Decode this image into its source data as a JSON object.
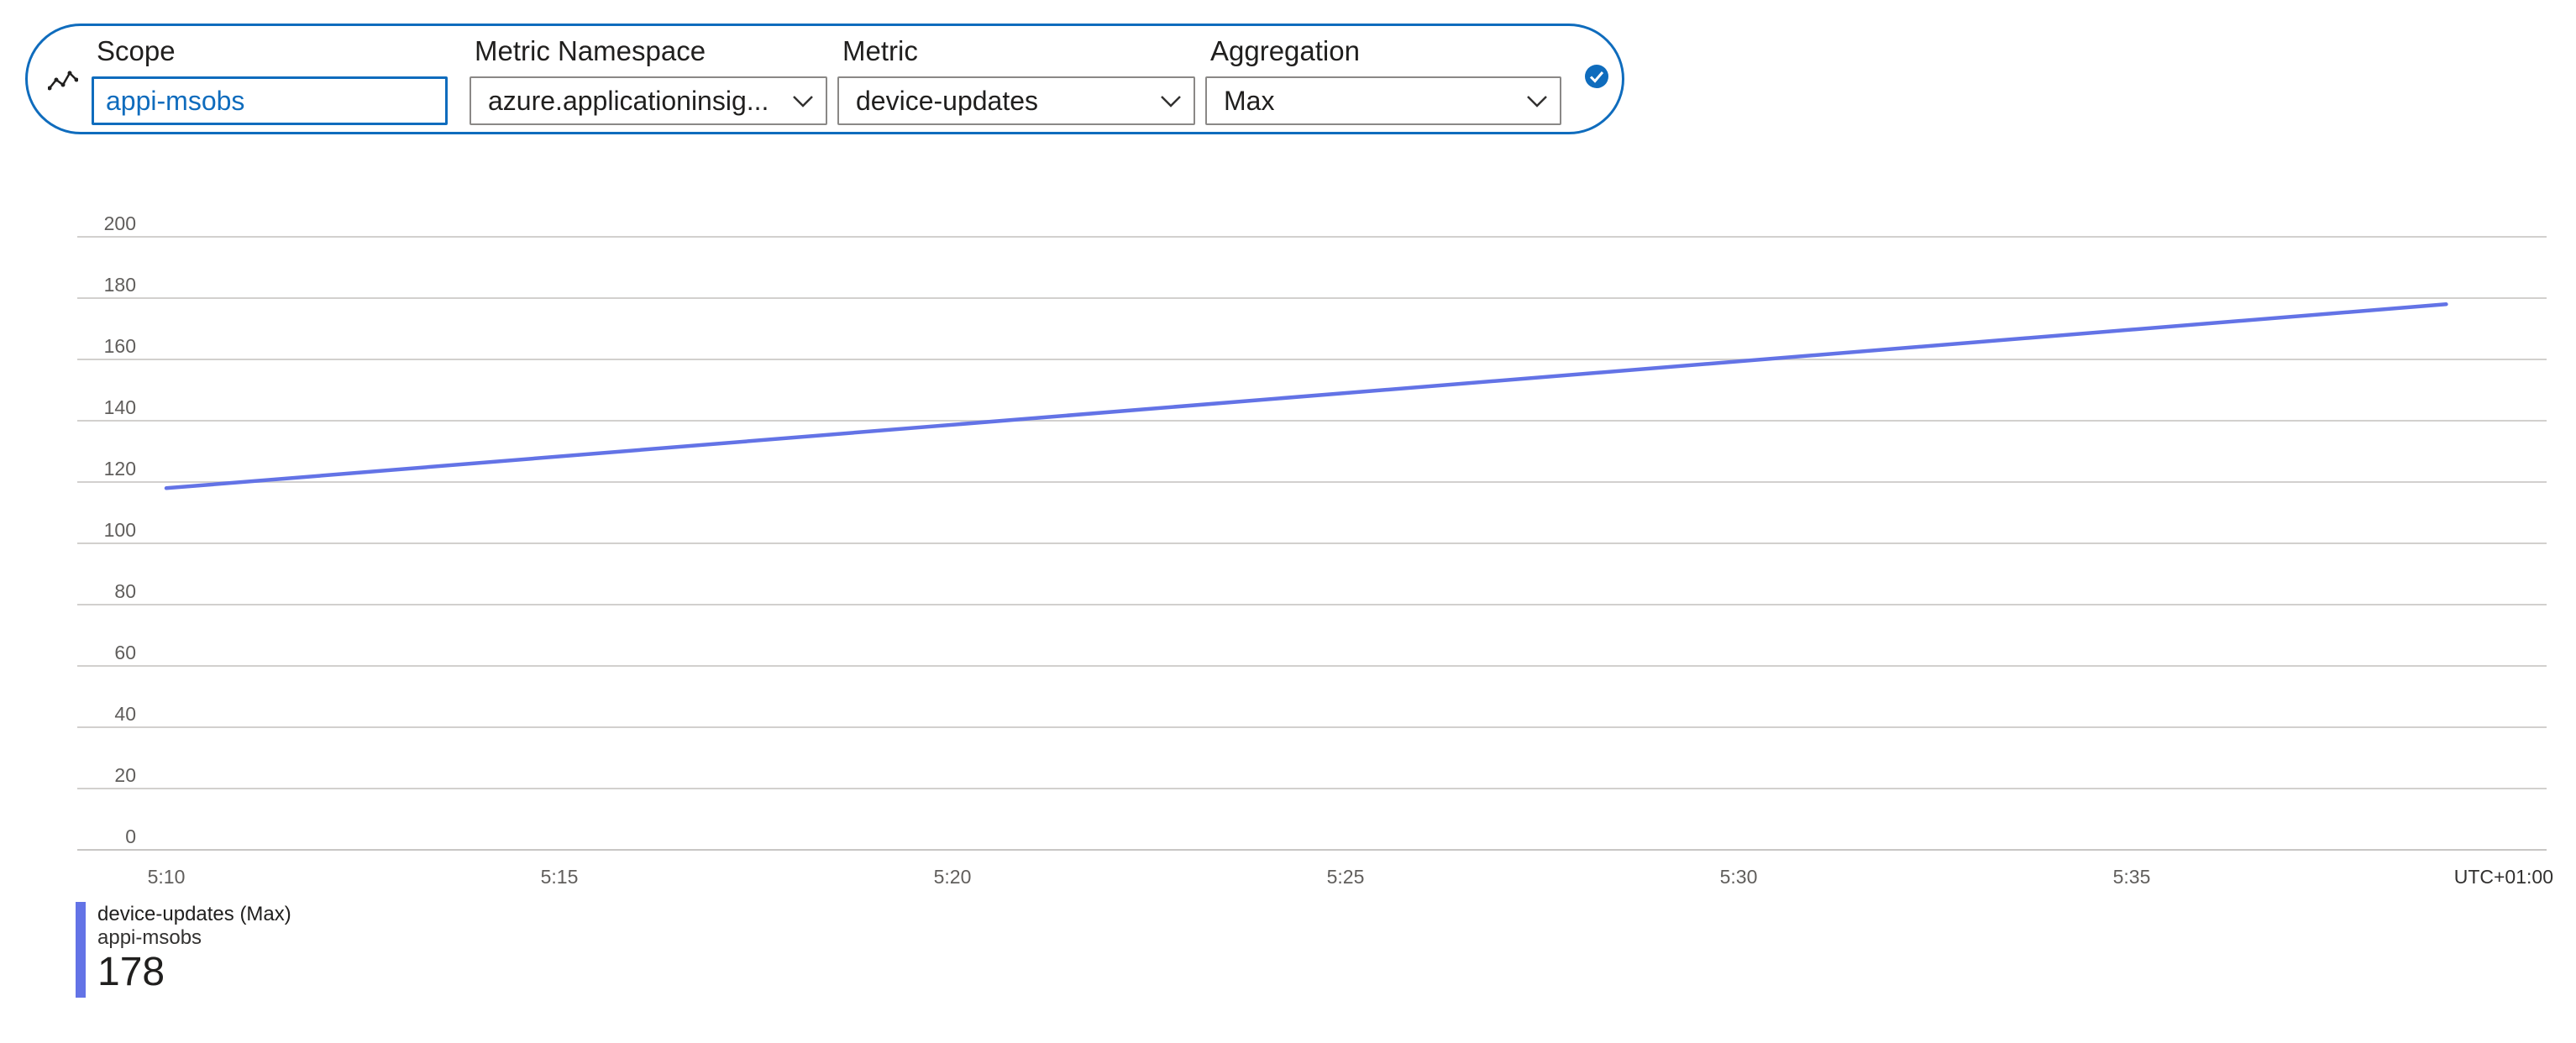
{
  "query": {
    "icon": "metric-line-icon",
    "scope": {
      "label": "Scope",
      "value": "appi-msobs"
    },
    "namespace": {
      "label": "Metric Namespace",
      "value": "azure.applicationinsig..."
    },
    "metric": {
      "label": "Metric",
      "value": "device-updates"
    },
    "aggregation": {
      "label": "Aggregation",
      "value": "Max"
    },
    "confirm_icon": "checkmark-circle-icon",
    "accent": "#0f6cbd"
  },
  "chart_data": {
    "type": "line",
    "ylim": [
      0,
      200
    ],
    "yticks": [
      "0",
      "20",
      "40",
      "60",
      "80",
      "100",
      "120",
      "140",
      "160",
      "180",
      "200"
    ],
    "xticks": [
      "5:10",
      "5:15",
      "5:20",
      "5:25",
      "5:30",
      "5:35"
    ],
    "timezone_label": "UTC+01:00",
    "series": [
      {
        "name": "device-updates (Max)",
        "color": "#6373e6",
        "points": [
          {
            "x": "5:10",
            "y": 118
          },
          {
            "x": "5:39",
            "y": 178
          }
        ]
      }
    ],
    "grid": true
  },
  "legend": {
    "name": "device-updates (Max)",
    "resource": "appi-msobs",
    "value": "178",
    "color": "#6373e6"
  }
}
